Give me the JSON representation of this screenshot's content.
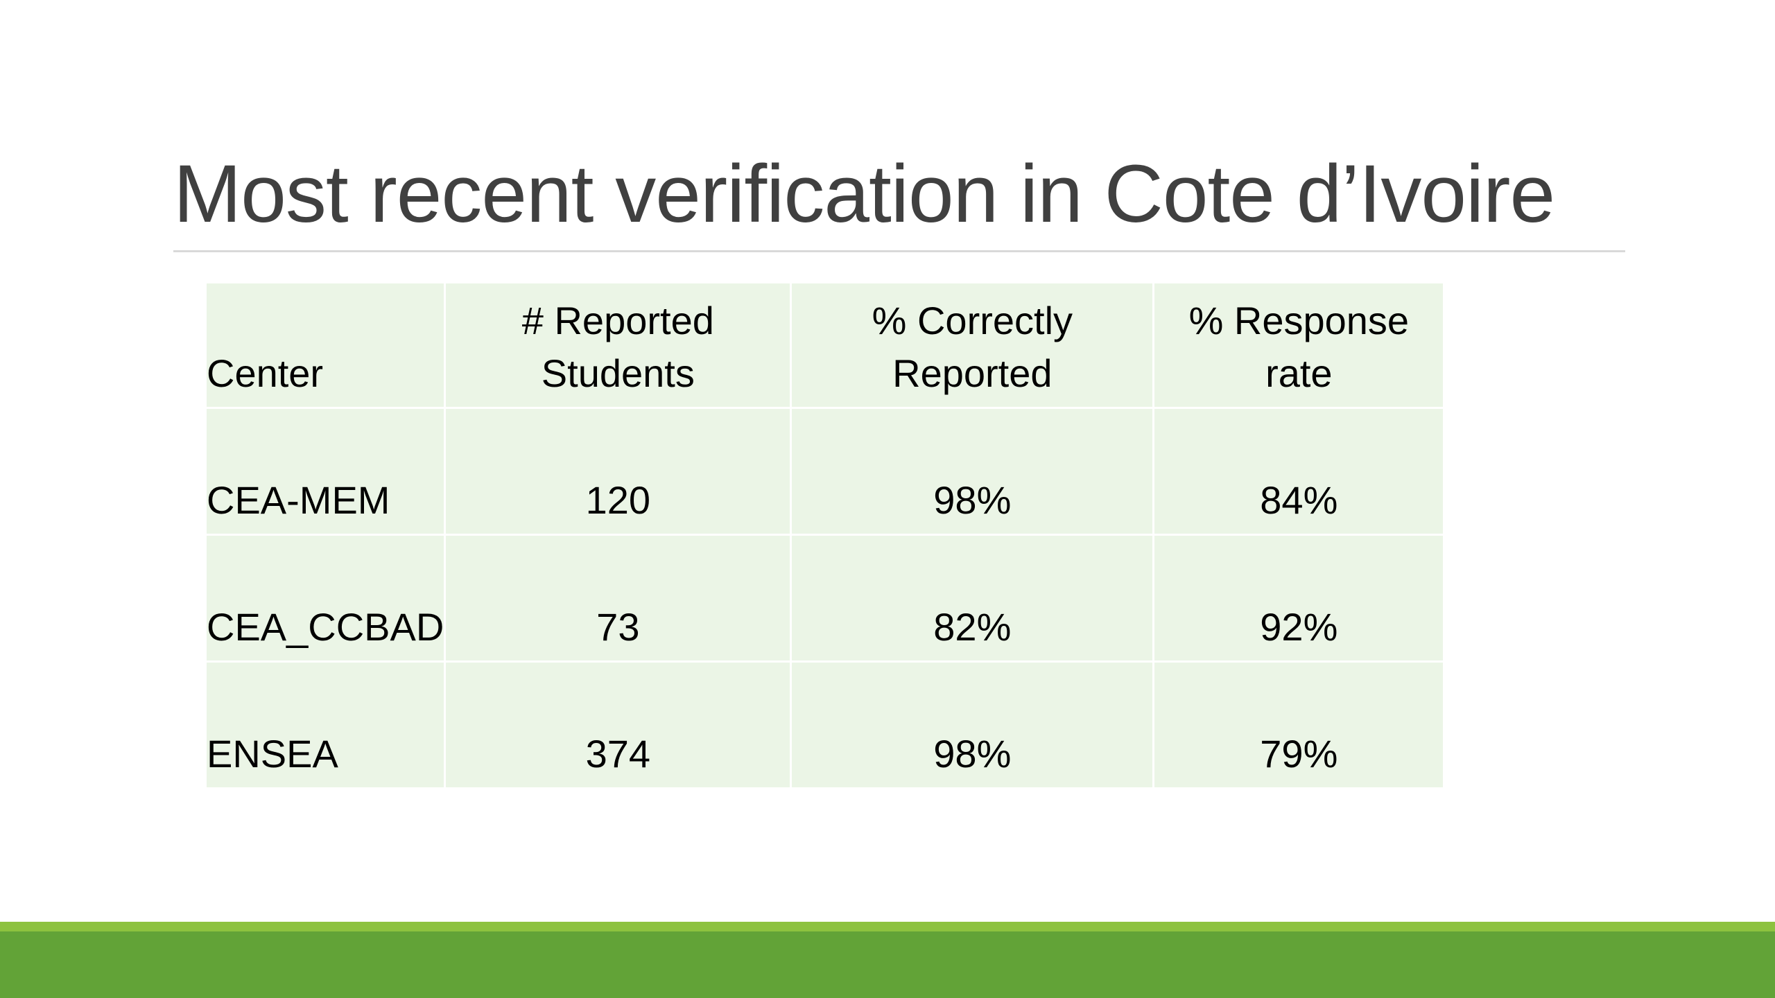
{
  "slide": {
    "title": "Most recent verification in Cote d’Ivoire"
  },
  "table": {
    "headers": {
      "center": "Center",
      "reported_line1": "# Reported",
      "reported_line2": "Students",
      "correct_line1": "% Correctly",
      "correct_line2": "Reported",
      "response_line1": "% Response",
      "response_line2": "rate"
    },
    "rows": [
      {
        "center": "CEA-MEM",
        "reported": "120",
        "correct": "98%",
        "response": "84%"
      },
      {
        "center": "CEA_CCBAD",
        "reported": "73",
        "correct": "82%",
        "response": "92%"
      },
      {
        "center": "ENSEA",
        "reported": "374",
        "correct": "98%",
        "response": "79%"
      }
    ]
  },
  "colors": {
    "table_fill": "#ebf5e6",
    "footer_light": "#8dc23f",
    "footer_dark": "#62a337",
    "title_text": "#404040"
  }
}
